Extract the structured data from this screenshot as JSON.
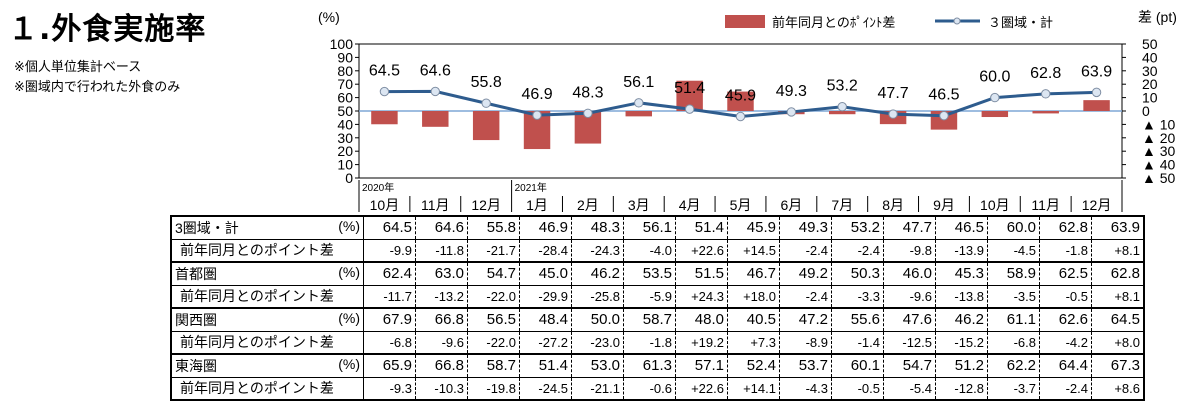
{
  "title": "１.外食実施率",
  "notes": [
    "※個人単位集計ベース",
    "※圏域内で行われた外食のみ"
  ],
  "colors": {
    "bar": "#c0504d",
    "line": "#2e5c8e",
    "marker_fill": "#dce6f2",
    "zero_line": "#7fa7d6"
  },
  "chart_data": {
    "type": "bar",
    "categories": [
      "10月",
      "11月",
      "12月",
      "1月",
      "2月",
      "3月",
      "4月",
      "5月",
      "6月",
      "7月",
      "8月",
      "9月",
      "10月",
      "11月",
      "12月"
    ],
    "year_labels": [
      {
        "index": 0,
        "text": "2020年"
      },
      {
        "index": 3,
        "text": "2021年"
      }
    ],
    "left_axis": {
      "unit": "(%)",
      "range": [
        0,
        100
      ],
      "ticks": [
        "0",
        "10",
        "20",
        "30",
        "40",
        "50",
        "60",
        "70",
        "80",
        "90",
        "100"
      ]
    },
    "right_axis": {
      "unit": "差 (pt)",
      "range": [
        -50,
        50
      ],
      "ticks": [
        "▲ 50",
        "▲ 40",
        "▲ 30",
        "▲ 20",
        "▲ 10",
        "0",
        "10",
        "20",
        "30",
        "40",
        "50"
      ]
    },
    "series": [
      {
        "name": "前年同月とのﾎﾟｲﾝﾄ差",
        "type": "bar",
        "axis": "right",
        "values": [
          -9.9,
          -11.8,
          -21.7,
          -28.4,
          -24.3,
          -4.0,
          22.6,
          14.5,
          -2.4,
          -2.4,
          -9.8,
          -13.9,
          -4.5,
          -1.8,
          8.1
        ]
      },
      {
        "name": "３圏域・計",
        "type": "line",
        "axis": "left",
        "values": [
          64.5,
          64.6,
          55.8,
          46.9,
          48.3,
          56.1,
          51.4,
          45.9,
          49.3,
          53.2,
          47.7,
          46.5,
          60.0,
          62.8,
          63.9
        ],
        "labels": [
          "64.5",
          "64.6",
          "55.8",
          "46.9",
          "48.3",
          "56.1",
          "51.4",
          "45.9",
          "49.3",
          "53.2",
          "47.7",
          "46.5",
          "60.0",
          "62.8",
          "63.9"
        ]
      }
    ]
  },
  "table": {
    "rows": [
      {
        "label": "3圏域・計",
        "unit": "(%)",
        "type": "main",
        "values": [
          "64.5",
          "64.6",
          "55.8",
          "46.9",
          "48.3",
          "56.1",
          "51.4",
          "45.9",
          "49.3",
          "53.2",
          "47.7",
          "46.5",
          "60.0",
          "62.8",
          "63.9"
        ]
      },
      {
        "label": "前年同月とのポイント差",
        "unit": "",
        "type": "diff",
        "values": [
          "-9.9",
          "-11.8",
          "-21.7",
          "-28.4",
          "-24.3",
          "-4.0",
          "+22.6",
          "+14.5",
          "-2.4",
          "-2.4",
          "-9.8",
          "-13.9",
          "-4.5",
          "-1.8",
          "+8.1"
        ]
      },
      {
        "label": "首都圏",
        "unit": "(%)",
        "type": "main",
        "values": [
          "62.4",
          "63.0",
          "54.7",
          "45.0",
          "46.2",
          "53.5",
          "51.5",
          "46.7",
          "49.2",
          "50.3",
          "46.0",
          "45.3",
          "58.9",
          "62.5",
          "62.8"
        ]
      },
      {
        "label": "前年同月とのポイント差",
        "unit": "",
        "type": "diff",
        "values": [
          "-11.7",
          "-13.2",
          "-22.0",
          "-29.9",
          "-25.8",
          "-5.9",
          "+24.3",
          "+18.0",
          "-2.4",
          "-3.3",
          "-9.6",
          "-13.8",
          "-3.5",
          "-0.5",
          "+8.1"
        ]
      },
      {
        "label": "関西圏",
        "unit": "(%)",
        "type": "main",
        "values": [
          "67.9",
          "66.8",
          "56.5",
          "48.4",
          "50.0",
          "58.7",
          "48.0",
          "40.5",
          "47.2",
          "55.6",
          "47.6",
          "46.2",
          "61.1",
          "62.6",
          "64.5"
        ]
      },
      {
        "label": "前年同月とのポイント差",
        "unit": "",
        "type": "diff",
        "values": [
          "-6.8",
          "-9.6",
          "-22.0",
          "-27.2",
          "-23.0",
          "-1.8",
          "+19.2",
          "+7.3",
          "-8.9",
          "-1.4",
          "-12.5",
          "-15.2",
          "-6.8",
          "-4.2",
          "+8.0"
        ]
      },
      {
        "label": "東海圏",
        "unit": "(%)",
        "type": "main",
        "values": [
          "65.9",
          "66.8",
          "58.7",
          "51.4",
          "53.0",
          "61.3",
          "57.1",
          "52.4",
          "53.7",
          "60.1",
          "54.7",
          "51.2",
          "62.2",
          "64.4",
          "67.3"
        ]
      },
      {
        "label": "前年同月とのポイント差",
        "unit": "",
        "type": "diff",
        "values": [
          "-9.3",
          "-10.3",
          "-19.8",
          "-24.5",
          "-21.1",
          "-0.6",
          "+22.6",
          "+14.1",
          "-4.3",
          "-0.5",
          "-5.4",
          "-12.8",
          "-3.7",
          "-2.4",
          "+8.6"
        ]
      }
    ]
  }
}
